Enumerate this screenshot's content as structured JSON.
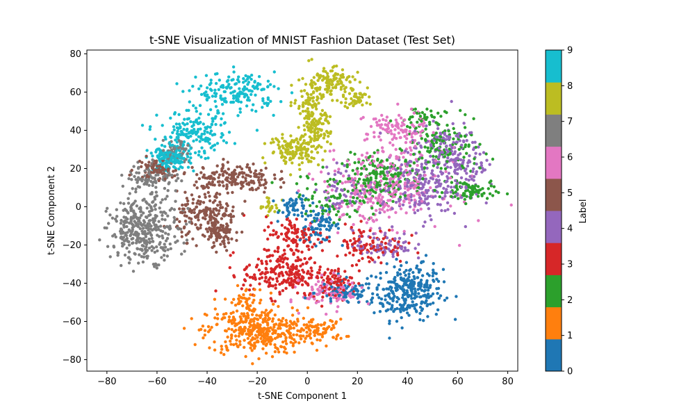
{
  "chart_data": {
    "type": "scatter",
    "title": "t-SNE Visualization of MNIST Fashion Dataset (Test Set)",
    "xlabel": "t-SNE Component 1",
    "ylabel": "t-SNE Component 2",
    "xlim": [
      -88,
      84
    ],
    "ylim": [
      -86,
      82
    ],
    "xticks": [
      -80,
      -60,
      -40,
      -20,
      0,
      20,
      40,
      60,
      80
    ],
    "yticks": [
      -80,
      -60,
      -40,
      -20,
      0,
      20,
      40,
      60,
      80
    ],
    "xtick_labels": [
      "−80",
      "−60",
      "−40",
      "−20",
      "0",
      "20",
      "40",
      "60",
      "80"
    ],
    "ytick_labels": [
      "−80",
      "−60",
      "−40",
      "−20",
      "0",
      "20",
      "40",
      "60",
      "80"
    ],
    "grid": false,
    "colorbar": {
      "label": "Label",
      "ticks": [
        0,
        1,
        2,
        3,
        4,
        5,
        6,
        7,
        8,
        9
      ],
      "tick_labels": [
        "0",
        "1",
        "2",
        "3",
        "4",
        "5",
        "6",
        "7",
        "8",
        "9"
      ],
      "colors": [
        "#1f77b4",
        "#ff7f0e",
        "#2ca02c",
        "#d62728",
        "#9467bd",
        "#8c564b",
        "#e377c2",
        "#7f7f7f",
        "#bcbd22",
        "#17becf"
      ]
    },
    "series": [
      {
        "label": 0,
        "clusters": [
          [
            40,
            -45,
            7,
            7,
            0.55
          ],
          [
            5,
            -10,
            4,
            4,
            0.15
          ],
          [
            15,
            -45,
            6,
            3,
            0.15
          ],
          [
            -5,
            0,
            3,
            3,
            0.1
          ],
          [
            45,
            -35,
            4,
            4,
            0.05
          ]
        ]
      },
      {
        "label": 1,
        "clusters": [
          [
            -20,
            -65,
            10,
            6,
            0.75
          ],
          [
            5,
            -65,
            5,
            3,
            0.15
          ],
          [
            -25,
            -50,
            4,
            4,
            0.1
          ]
        ]
      },
      {
        "label": 2,
        "clusters": [
          [
            30,
            15,
            8,
            6,
            0.35
          ],
          [
            55,
            30,
            7,
            7,
            0.25
          ],
          [
            65,
            8,
            5,
            3,
            0.15
          ],
          [
            10,
            5,
            8,
            6,
            0.15
          ],
          [
            45,
            45,
            5,
            4,
            0.1
          ]
        ]
      },
      {
        "label": 3,
        "clusters": [
          [
            -10,
            -35,
            8,
            6,
            0.45
          ],
          [
            -5,
            -15,
            6,
            5,
            0.2
          ],
          [
            25,
            -20,
            7,
            5,
            0.2
          ],
          [
            10,
            -40,
            4,
            4,
            0.15
          ]
        ]
      },
      {
        "label": 4,
        "clusters": [
          [
            45,
            10,
            8,
            8,
            0.4
          ],
          [
            55,
            30,
            7,
            7,
            0.25
          ],
          [
            30,
            -20,
            6,
            4,
            0.15
          ],
          [
            65,
            20,
            5,
            5,
            0.1
          ],
          [
            15,
            10,
            6,
            6,
            0.1
          ]
        ]
      },
      {
        "label": 5,
        "clusters": [
          [
            -30,
            15,
            8,
            4,
            0.35
          ],
          [
            -40,
            -5,
            6,
            6,
            0.35
          ],
          [
            -35,
            -15,
            3,
            4,
            0.15
          ],
          [
            -60,
            20,
            4,
            3,
            0.15
          ]
        ]
      },
      {
        "label": 6,
        "clusters": [
          [
            30,
            10,
            12,
            10,
            0.6
          ],
          [
            10,
            -45,
            6,
            4,
            0.2
          ],
          [
            35,
            40,
            6,
            5,
            0.2
          ]
        ]
      },
      {
        "label": 7,
        "clusters": [
          [
            -65,
            -12,
            7,
            8,
            0.7
          ],
          [
            -62,
            15,
            5,
            5,
            0.2
          ],
          [
            -52,
            30,
            3,
            3,
            0.1
          ]
        ]
      },
      {
        "label": 8,
        "clusters": [
          [
            8,
            65,
            5,
            4,
            0.25
          ],
          [
            3,
            40,
            3,
            6,
            0.25
          ],
          [
            -5,
            30,
            5,
            4,
            0.25
          ],
          [
            0,
            55,
            3,
            4,
            0.1
          ],
          [
            20,
            57,
            3,
            3,
            0.1
          ],
          [
            -15,
            0,
            2,
            2,
            0.05
          ]
        ]
      },
      {
        "label": 9,
        "clusters": [
          [
            -28,
            60,
            8,
            5,
            0.35
          ],
          [
            -45,
            38,
            7,
            6,
            0.35
          ],
          [
            -55,
            25,
            4,
            3,
            0.3
          ]
        ]
      }
    ],
    "points_per_label": 500
  }
}
